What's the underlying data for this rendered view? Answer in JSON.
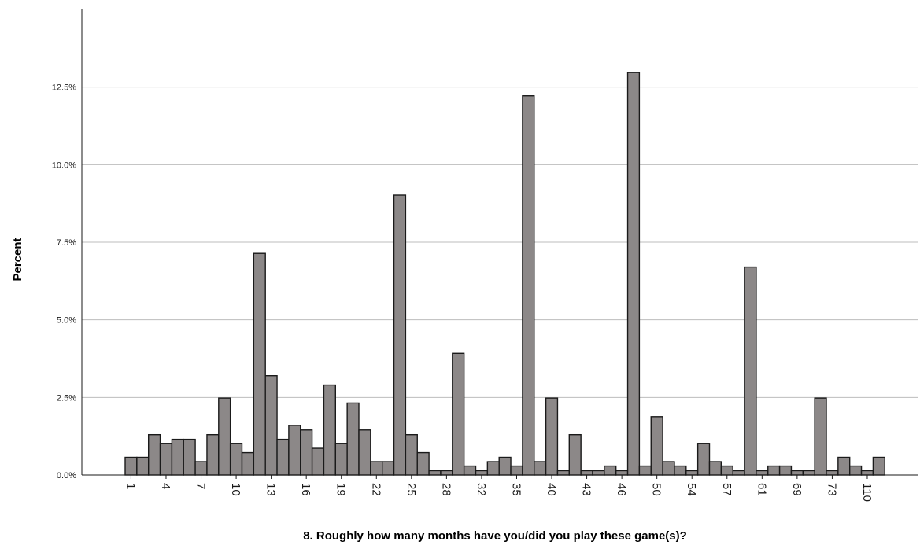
{
  "chart_data": {
    "type": "bar",
    "title": "",
    "xlabel": "8. Roughly how many months have you/did you play these game(s)?",
    "ylabel": "Percent",
    "ylim": [
      0,
      15
    ],
    "yticks": [
      0,
      2.5,
      5,
      7.5,
      10,
      12.5
    ],
    "ytick_labels": [
      "0.0%",
      "2.5%",
      "5.0%",
      "7.5%",
      "10.0%",
      "12.5%"
    ],
    "grid": "horizontal",
    "colors": {
      "bar_fill": "#8c8888",
      "bar_stroke": "#1a1a1a",
      "grid": "#bdbdbd"
    },
    "xtick_labels": [
      "1",
      "4",
      "7",
      "10",
      "13",
      "16",
      "19",
      "22",
      "25",
      "28",
      "32",
      "35",
      "40",
      "43",
      "46",
      "50",
      "54",
      "57",
      "61",
      "69",
      "73",
      "110"
    ],
    "xtick_every": 3,
    "values": [
      0.57,
      0.57,
      1.3,
      1.02,
      1.15,
      1.15,
      0.43,
      1.3,
      2.48,
      1.02,
      0.72,
      7.14,
      3.2,
      1.15,
      1.6,
      1.45,
      0.86,
      2.9,
      1.02,
      2.32,
      1.45,
      0.43,
      0.43,
      9.02,
      1.3,
      0.72,
      0.14,
      0.14,
      3.92,
      0.29,
      0.14,
      0.43,
      0.57,
      0.29,
      12.22,
      0.43,
      2.48,
      0.14,
      1.3,
      0.14,
      0.14,
      0.29,
      0.14,
      12.97,
      0.29,
      1.88,
      0.43,
      0.29,
      0.14,
      1.02,
      0.43,
      0.29,
      0.14,
      6.7,
      0.14,
      0.29,
      0.29,
      0.14,
      0.14,
      2.48,
      0.14,
      0.57,
      0.29,
      0.14,
      0.57
    ]
  }
}
